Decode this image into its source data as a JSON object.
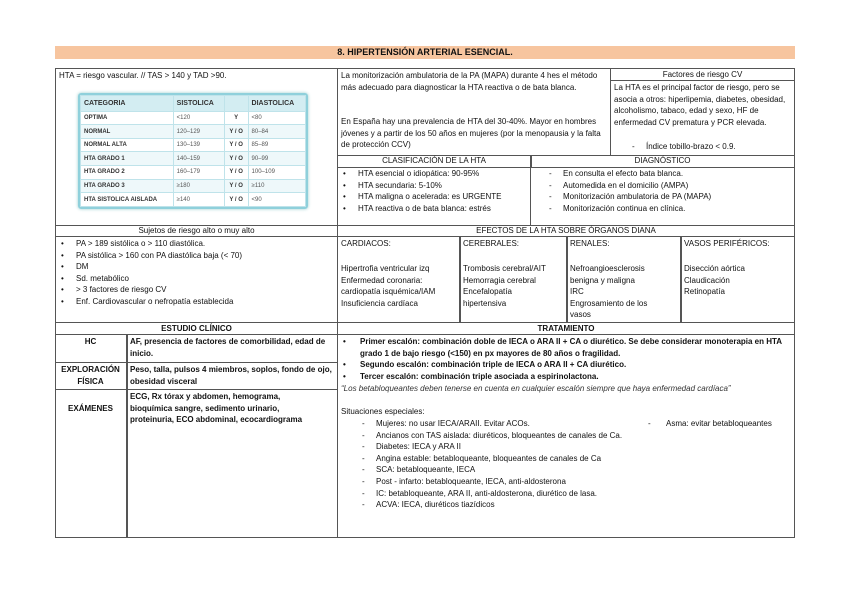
{
  "title": "8.    HIPERTENSIÓN ARTERIAL ESENCIAL.",
  "hta_def": "HTA = riesgo vascular. // TAS > 140 y TAD >90.",
  "bp_table": {
    "headers": [
      "CATEGORIA",
      "SISTOLICA",
      "",
      "DIASTOLICA"
    ],
    "rows": [
      [
        "OPTIMA",
        "<120",
        "Y",
        "<80"
      ],
      [
        "NORMAL",
        "120–129",
        "Y / O",
        "80–84"
      ],
      [
        "NORMAL ALTA",
        "130–139",
        "Y / O",
        "85–89"
      ],
      [
        "HTA GRADO 1",
        "140–159",
        "Y / O",
        "90–99"
      ],
      [
        "HTA GRADO 2",
        "160–179",
        "Y / O",
        "100–109"
      ],
      [
        "HTA GRADO 3",
        "≥180",
        "Y / O",
        "≥110"
      ],
      [
        "HTA SISTOLICA AISLADA",
        "≥140",
        "Y / O",
        "<90"
      ]
    ]
  },
  "mapa_text": "La monitorización ambulatoria de la PA (MAPA) durante 4 hes el método más adecuado para diagnosticar la HTA reactiva o de bata blanca.",
  "prevalencia_text": "En España hay una prevalencia de HTA del 30-40%. Mayor en hombres jóvenes y a partir de los 50 años en mujeres (por la menopausia y la falta de protección CCV)",
  "factores": {
    "title": "Factores de riesgo CV",
    "text": "La HTA es el principal factor de riesgo, pero se asocia a otros: hiperlipemia, diabetes, obesidad, alcoholismo, tabaco, edad y sexo, HF de enfermedad CV prematura y PCR elevada.",
    "item": "Índice tobillo-brazo < 0.9."
  },
  "clasificacion": {
    "title": "CLASIFICACIÓN DE LA HTA",
    "items": [
      "HTA esencial o idiopática: 90-95%",
      "HTA secundaria: 5-10%",
      "HTA maligna o acelerada: es URGENTE",
      "HTA reactiva o de bata blanca: estrés"
    ]
  },
  "diagnostico": {
    "title": "DIAGNÓSTICO",
    "items": [
      "En consulta el efecto bata blanca.",
      "Automedida en el domicilio (AMPA)",
      "Monitorización ambulatoria de PA (MAPA)",
      "Monitorización continua en clínica."
    ]
  },
  "sujetos": {
    "title": "Sujetos de riesgo alto o muy alto",
    "items": [
      "PA > 189 sistólica o > 110 diastólica.",
      "PA sistólica > 160 con PA diastólica baja (< 70)",
      "DM",
      "Sd. metabólico",
      "> 3 factores de riesgo CV",
      "Enf. Cardiovascular o nefropatía establecida"
    ]
  },
  "efectos": {
    "title": "EFECTOS DE LA HTA SOBRE ÓRGANOS DIANA",
    "cols": [
      {
        "head": "CARDIACOS:",
        "items": [
          "Hipertrofia ventricular izq",
          "Enfermedad coronaria:",
          "cardiopatía isquémica/IAM",
          "Insuficiencia cardíaca"
        ]
      },
      {
        "head": "CEREBRALES:",
        "items": [
          "Trombosis cerebral/AIT",
          "Hemorragia cerebral",
          "Encefalopatía",
          "hipertensiva"
        ]
      },
      {
        "head": "RENALES:",
        "items": [
          "Nefroangioesclerosis",
          "benigna y maligna",
          "IRC",
          "Engrosamiento de los",
          "vasos"
        ]
      },
      {
        "head": "VASOS PERIFÉRICOS:",
        "items": [
          "Disección aórtica",
          "Claudicación",
          "Retinopatía"
        ]
      }
    ]
  },
  "estudio": {
    "title": "ESTUDIO CLÍNICO",
    "rows": [
      {
        "label": "HC",
        "text": "AF, presencia de factores de comorbilidad, edad de inicio."
      },
      {
        "label": "EXPLORACIÓN FÍSICA",
        "text": "Peso, talla, pulsos 4 miembros, soplos, fondo de ojo, obesidad visceral"
      },
      {
        "label": "EXÁMENES",
        "text": "ECG, Rx tórax y abdomen, hemograma, bioquímica sangre, sedimento urinario, proteinuria, ECO abdominal, ecocardiograma"
      }
    ]
  },
  "tratamiento": {
    "title": "TRATAMIENTO",
    "steps": [
      "Primer escalón: combinación doble de IECA o ARA II + CA o diurético. Se debe considerar monoterapia en HTA grado 1 de bajo riesgo (<150) en px mayores de 80 años o fragilidad.",
      "Segundo escalón: combinación triple de IECA o ARA II + CA diurético.",
      "Tercer escalón: combinación triple asociada a espirinolactona."
    ],
    "quote": "“Los betabloqueantes deben tenerse en cuenta en cualquier escalón siempre que haya enfermedad cardíaca”",
    "especiales_title": "Situaciones especiales:",
    "asma": "Asma: evitar betabloqueantes",
    "especiales": [
      "Mujeres: no usar IECA/ARAII. Evitar ACOs.",
      "Ancianos con TAS aislada: diuréticos, bloqueantes de canales de Ca.",
      "Diabetes: IECA y ARA II",
      "Angina estable: betabloqueante, bloqueantes de canales de Ca",
      "SCA: betabloqueante, IECA",
      "Post - infarto: betabloqueante, IECA, anti-aldosterona",
      "IC: betabloqueante, ARA II, anti-aldosterona, diurético de lasa.",
      "ACVA: IECA, diuréticos tiazídicos"
    ]
  }
}
